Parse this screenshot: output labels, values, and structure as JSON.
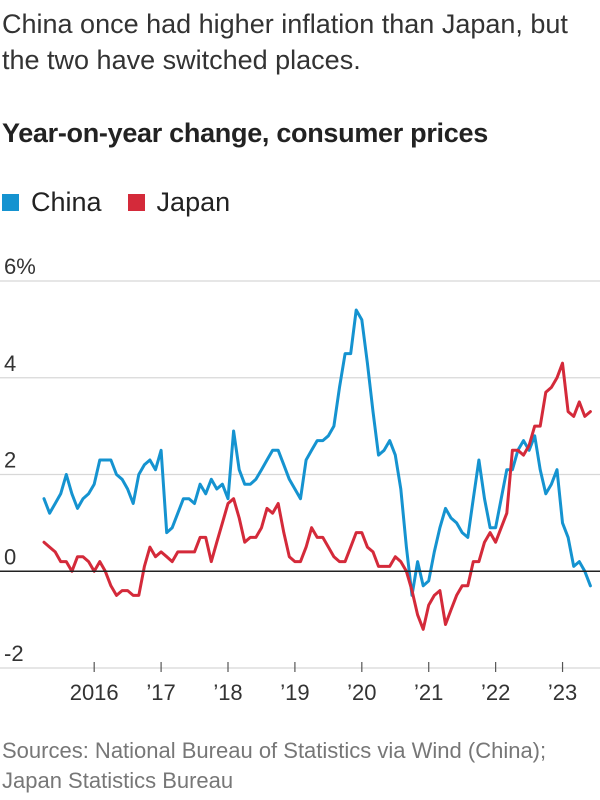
{
  "header": {
    "title": "China once had higher inflation than Japan, but the two have switched places."
  },
  "colors": {
    "china": "#1593d0",
    "japan": "#d42a3a",
    "grid": "#d8d8d8",
    "zero": "#222222"
  },
  "chart_data": {
    "type": "line",
    "title": "Year-on-year change, consumer prices",
    "ylabel": "",
    "xlabel": "",
    "ylim": [
      -2,
      6
    ],
    "yticks": [
      6,
      4,
      2,
      0,
      -2
    ],
    "ytick_labels": [
      "6%",
      "4",
      "2",
      "0",
      "-2"
    ],
    "xlim": [
      2015.25,
      2023.5
    ],
    "xticks": [
      2016,
      2017,
      2018,
      2019,
      2020,
      2021,
      2022,
      2023
    ],
    "xtick_labels": [
      "2016",
      "’17",
      "’18",
      "’19",
      "’20",
      "’21",
      "’22",
      "’23"
    ],
    "grid": true,
    "legend_position": "top-left",
    "series": [
      {
        "name": "China",
        "color": "#1593d0",
        "x_start": 2015.25,
        "values": [
          1.5,
          1.2,
          1.4,
          1.6,
          2.0,
          1.6,
          1.3,
          1.5,
          1.6,
          1.8,
          2.3,
          2.3,
          2.3,
          2.0,
          1.9,
          1.7,
          1.4,
          2.0,
          2.2,
          2.3,
          2.1,
          2.5,
          0.8,
          0.9,
          1.2,
          1.5,
          1.5,
          1.4,
          1.8,
          1.6,
          1.9,
          1.7,
          1.8,
          1.5,
          2.9,
          2.1,
          1.8,
          1.8,
          1.9,
          2.1,
          2.3,
          2.5,
          2.5,
          2.2,
          1.9,
          1.7,
          1.5,
          2.3,
          2.5,
          2.7,
          2.7,
          2.8,
          3.0,
          3.8,
          4.5,
          4.5,
          5.4,
          5.2,
          4.3,
          3.3,
          2.4,
          2.5,
          2.7,
          2.4,
          1.7,
          0.5,
          -0.5,
          0.2,
          -0.3,
          -0.2,
          0.4,
          0.9,
          1.3,
          1.1,
          1.0,
          0.8,
          0.7,
          1.5,
          2.3,
          1.5,
          0.9,
          0.9,
          1.5,
          2.1,
          2.1,
          2.5,
          2.7,
          2.5,
          2.8,
          2.1,
          1.6,
          1.8,
          2.1,
          1.0,
          0.7,
          0.1,
          0.2,
          0.0,
          -0.3
        ]
      },
      {
        "name": "Japan",
        "color": "#d42a3a",
        "x_start": 2015.25,
        "values": [
          0.6,
          0.5,
          0.4,
          0.2,
          0.2,
          0.0,
          0.3,
          0.3,
          0.2,
          0.0,
          0.2,
          0.0,
          -0.3,
          -0.5,
          -0.4,
          -0.4,
          -0.5,
          -0.5,
          0.1,
          0.5,
          0.3,
          0.4,
          0.3,
          0.2,
          0.4,
          0.4,
          0.4,
          0.4,
          0.7,
          0.7,
          0.2,
          0.6,
          1.0,
          1.4,
          1.5,
          1.1,
          0.6,
          0.7,
          0.7,
          0.9,
          1.3,
          1.2,
          1.4,
          0.8,
          0.3,
          0.2,
          0.2,
          0.5,
          0.9,
          0.7,
          0.7,
          0.5,
          0.3,
          0.2,
          0.2,
          0.5,
          0.8,
          0.8,
          0.5,
          0.4,
          0.1,
          0.1,
          0.1,
          0.3,
          0.2,
          0.0,
          -0.4,
          -0.9,
          -1.2,
          -0.7,
          -0.5,
          -0.4,
          -1.1,
          -0.8,
          -0.5,
          -0.3,
          -0.3,
          0.2,
          0.2,
          0.6,
          0.8,
          0.6,
          0.9,
          1.2,
          2.5,
          2.5,
          2.4,
          2.6,
          3.0,
          3.0,
          3.7,
          3.8,
          4.0,
          4.3,
          3.3,
          3.2,
          3.5,
          3.2,
          3.3
        ]
      }
    ]
  },
  "source": "Sources: National Bureau of Statistics via Wind (China); Japan Statistics Bureau"
}
